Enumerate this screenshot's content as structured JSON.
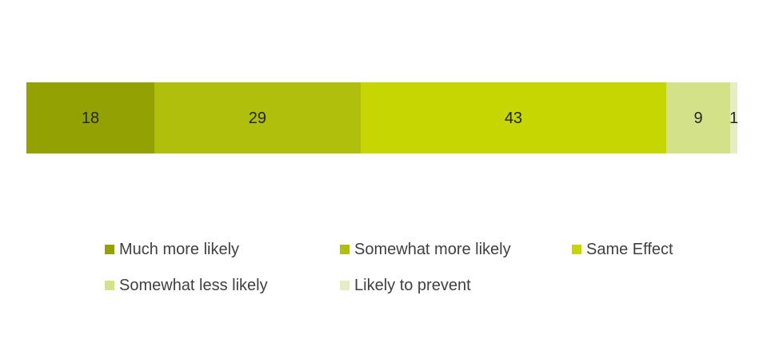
{
  "chart_data": {
    "type": "bar",
    "stacked": true,
    "orientation": "horizontal",
    "title": "",
    "xlabel": "",
    "ylabel": "",
    "xlim": [
      0,
      100
    ],
    "grid": false,
    "axes_visible": false,
    "data_labels": true,
    "legend_position": "bottom",
    "categories": [
      ""
    ],
    "series": [
      {
        "name": "Much more likely",
        "values": [
          18
        ],
        "color": "#93a103"
      },
      {
        "name": "Somewhat more likely",
        "values": [
          29
        ],
        "color": "#b0be0c"
      },
      {
        "name": "Same Effect",
        "values": [
          43
        ],
        "color": "#c6d602"
      },
      {
        "name": "Somewhat less likely",
        "values": [
          9
        ],
        "color": "#d3e189"
      },
      {
        "name": "Likely to prevent",
        "values": [
          1
        ],
        "color": "#e6edc5"
      }
    ]
  },
  "colors": {
    "background": "#ffffff",
    "value_label_text": "#262626",
    "legend_text": "#404040"
  }
}
